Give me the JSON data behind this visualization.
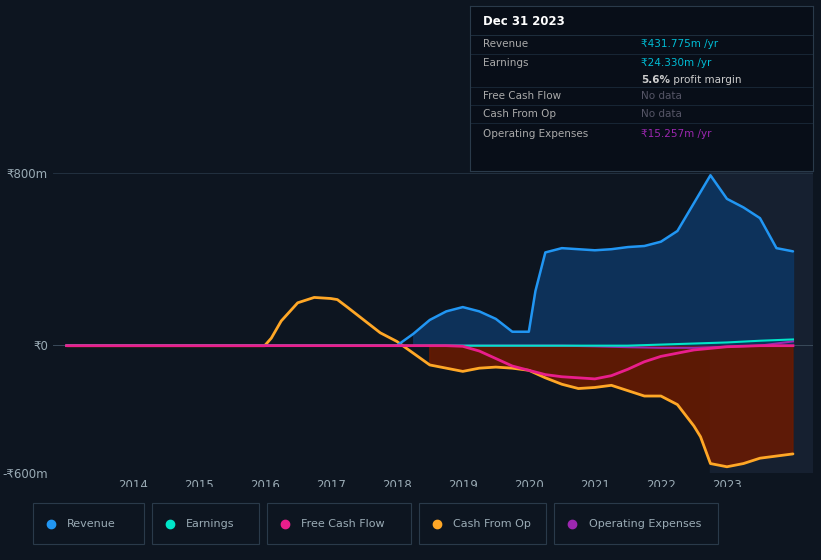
{
  "background_color": "#0d1520",
  "plot_bg_color": "#0d1520",
  "text_color": "#9aabb5",
  "ylim": [
    -600,
    850
  ],
  "xlim": [
    2012.8,
    2024.3
  ],
  "xlabel_years": [
    2014,
    2015,
    2016,
    2017,
    2018,
    2019,
    2020,
    2021,
    2022,
    2023
  ],
  "highlight_x_start": 2022.75,
  "highlight_x_end": 2024.5,
  "series": {
    "Revenue": {
      "color": "#2196f3",
      "fill_color": "#0d3a6e",
      "fill_alpha": 0.85,
      "lw": 1.8,
      "x": [
        2013.0,
        2013.5,
        2014.0,
        2014.5,
        2015.0,
        2015.5,
        2016.0,
        2016.5,
        2017.0,
        2017.5,
        2018.0,
        2018.25,
        2018.5,
        2018.75,
        2019.0,
        2019.25,
        2019.5,
        2019.75,
        2020.0,
        2020.1,
        2020.25,
        2020.5,
        2020.75,
        2021.0,
        2021.25,
        2021.5,
        2021.75,
        2022.0,
        2022.25,
        2022.5,
        2022.75,
        2023.0,
        2023.25,
        2023.5,
        2023.75,
        2024.0
      ],
      "y": [
        -5,
        -5,
        -5,
        -5,
        -5,
        -5,
        -5,
        -5,
        -5,
        -5,
        -5,
        50,
        115,
        155,
        175,
        155,
        120,
        60,
        60,
        250,
        430,
        450,
        445,
        440,
        445,
        455,
        460,
        480,
        530,
        660,
        790,
        680,
        640,
        590,
        450,
        435
      ]
    },
    "Earnings": {
      "color": "#00e5c8",
      "lw": 1.5,
      "x": [
        2013.0,
        2014.0,
        2015.0,
        2016.0,
        2017.0,
        2018.0,
        2019.0,
        2019.5,
        2020.0,
        2020.5,
        2021.0,
        2021.5,
        2022.0,
        2022.5,
        2023.0,
        2023.5,
        2024.0
      ],
      "y": [
        -5,
        -5,
        -5,
        -5,
        -5,
        -5,
        -5,
        -5,
        -5,
        -5,
        -5,
        -5,
        0,
        5,
        10,
        18,
        24
      ]
    },
    "Free Cash Flow": {
      "color": "#e91e8c",
      "lw": 2.0,
      "x": [
        2013.0,
        2014.0,
        2015.0,
        2016.0,
        2017.0,
        2018.0,
        2018.75,
        2019.0,
        2019.25,
        2019.5,
        2019.75,
        2020.0,
        2020.25,
        2020.5,
        2020.75,
        2021.0,
        2021.25,
        2021.5,
        2021.75,
        2022.0,
        2022.5,
        2023.0,
        2023.5,
        2024.0
      ],
      "y": [
        -5,
        -5,
        -5,
        -5,
        -5,
        -5,
        -5,
        -8,
        -30,
        -65,
        -100,
        -120,
        -140,
        -150,
        -155,
        -160,
        -145,
        -115,
        -80,
        -55,
        -25,
        -10,
        -5,
        -5
      ]
    },
    "Cash From Op": {
      "color": "#ffa726",
      "fill_color": "#4a1a00",
      "fill_alpha": 0.8,
      "lw": 2.0,
      "x": [
        2013.0,
        2013.5,
        2014.0,
        2014.5,
        2015.0,
        2015.5,
        2016.0,
        2016.1,
        2016.25,
        2016.5,
        2016.75,
        2017.0,
        2017.1,
        2017.25,
        2017.5,
        2017.75,
        2018.0,
        2018.5,
        2019.0,
        2019.25,
        2019.5,
        2019.75,
        2020.0,
        2020.25,
        2020.5,
        2020.75,
        2021.0,
        2021.25,
        2021.5,
        2021.75,
        2022.0,
        2022.25,
        2022.5,
        2022.6,
        2022.75,
        2023.0,
        2023.25,
        2023.5,
        2024.0
      ],
      "y": [
        -5,
        -5,
        -5,
        -5,
        -5,
        -5,
        -5,
        30,
        110,
        195,
        220,
        215,
        210,
        175,
        115,
        55,
        15,
        -95,
        -125,
        -110,
        -105,
        -110,
        -120,
        -155,
        -185,
        -205,
        -200,
        -190,
        -215,
        -240,
        -240,
        -280,
        -380,
        -430,
        -555,
        -570,
        -555,
        -530,
        -510
      ]
    },
    "Operating Expenses": {
      "color": "#9c27b0",
      "lw": 1.5,
      "x": [
        2013.0,
        2014.0,
        2015.0,
        2016.0,
        2017.0,
        2018.0,
        2019.0,
        2019.5,
        2020.0,
        2020.5,
        2021.0,
        2021.5,
        2022.0,
        2022.5,
        2023.0,
        2023.5,
        2024.0
      ],
      "y": [
        -5,
        -5,
        -5,
        -5,
        -5,
        -5,
        -5,
        -5,
        -5,
        -5,
        -8,
        -12,
        -15,
        -15,
        -10,
        -5,
        15
      ]
    }
  },
  "info_box": {
    "title": "Dec 31 2023",
    "rows": [
      {
        "label": "Revenue",
        "value": "₹431.775m /yr",
        "value_color": "#00bcd4"
      },
      {
        "label": "Earnings",
        "value": "₹24.330m /yr",
        "value_color": "#00bcd4"
      },
      {
        "label": "",
        "value": "5.6% profit margin",
        "value_color": "#cccccc"
      },
      {
        "label": "Free Cash Flow",
        "value": "No data",
        "value_color": "#555566"
      },
      {
        "label": "Cash From Op",
        "value": "No data",
        "value_color": "#555566"
      },
      {
        "label": "Operating Expenses",
        "value": "₹15.257m /yr",
        "value_color": "#9c27b0"
      }
    ]
  },
  "legend": [
    {
      "label": "Revenue",
      "color": "#2196f3"
    },
    {
      "label": "Earnings",
      "color": "#00e5c8"
    },
    {
      "label": "Free Cash Flow",
      "color": "#e91e8c"
    },
    {
      "label": "Cash From Op",
      "color": "#ffa726"
    },
    {
      "label": "Operating Expenses",
      "color": "#9c27b0"
    }
  ]
}
